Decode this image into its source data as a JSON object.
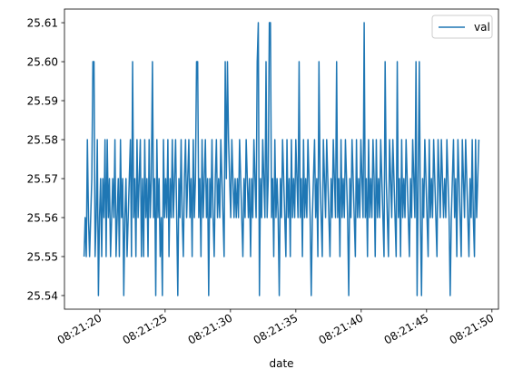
{
  "chart_data": {
    "type": "line",
    "xlabel": "date",
    "ylabel": "",
    "title": "",
    "x_start": "08:21:18.8",
    "x_end": "08:21:49.0",
    "xlim": [
      "08:21:17.3",
      "08:21:50.5"
    ],
    "ylim": [
      25.5365,
      25.6135
    ],
    "x_ticks": [
      "08:21:20",
      "08:21:25",
      "08:21:30",
      "08:21:35",
      "08:21:40",
      "08:21:45",
      "08:21:50"
    ],
    "y_ticks": [
      "25.54",
      "25.55",
      "25.56",
      "25.57",
      "25.58",
      "25.59",
      "25.60",
      "25.61"
    ],
    "grid": false,
    "legend": {
      "position": "top-right",
      "entries": [
        "val"
      ]
    },
    "line_color": "#1f77b4",
    "series": [
      {
        "name": "val",
        "values": [
          25.55,
          25.56,
          25.55,
          25.58,
          25.56,
          25.55,
          25.56,
          25.57,
          25.6,
          25.6,
          25.55,
          25.56,
          25.58,
          25.54,
          25.56,
          25.57,
          25.55,
          25.57,
          25.56,
          25.58,
          25.55,
          25.58,
          25.56,
          25.57,
          25.55,
          25.56,
          25.57,
          25.56,
          25.58,
          25.55,
          25.56,
          25.57,
          25.55,
          25.58,
          25.56,
          25.57,
          25.54,
          25.56,
          25.57,
          25.55,
          25.56,
          25.57,
          25.58,
          25.55,
          25.6,
          25.56,
          25.57,
          25.55,
          25.58,
          25.56,
          25.57,
          25.58,
          25.55,
          25.57,
          25.55,
          25.58,
          25.56,
          25.57,
          25.55,
          25.58,
          25.56,
          25.57,
          25.6,
          25.56,
          25.57,
          25.54,
          25.58,
          25.56,
          25.57,
          25.55,
          25.56,
          25.54,
          25.58,
          25.56,
          25.57,
          25.56,
          25.58,
          25.55,
          25.57,
          25.56,
          25.58,
          25.56,
          25.57,
          25.58,
          25.56,
          25.54,
          25.57,
          25.56,
          25.58,
          25.56,
          25.55,
          25.57,
          25.58,
          25.56,
          25.57,
          25.58,
          25.56,
          25.57,
          25.55,
          25.58,
          25.56,
          25.57,
          25.6,
          25.6,
          25.56,
          25.57,
          25.55,
          25.58,
          25.56,
          25.57,
          25.58,
          25.56,
          25.57,
          25.54,
          25.57,
          25.56,
          25.58,
          25.56,
          25.55,
          25.57,
          25.58,
          25.56,
          25.57,
          25.56,
          25.58,
          25.57,
          25.56,
          25.55,
          25.6,
          25.57,
          25.6,
          25.58,
          25.57,
          25.56,
          25.58,
          25.57,
          25.56,
          25.57,
          25.56,
          25.57,
          25.56,
          25.58,
          25.57,
          25.56,
          25.55,
          25.57,
          25.56,
          25.58,
          25.57,
          25.56,
          25.57,
          25.55,
          25.57,
          25.56,
          25.58,
          25.57,
          25.56,
          25.6,
          25.61,
          25.54,
          25.57,
          25.56,
          25.58,
          25.57,
          25.56,
          25.6,
          25.56,
          25.57,
          25.61,
          25.61,
          25.56,
          25.57,
          25.55,
          25.58,
          25.56,
          25.57,
          25.56,
          25.54,
          25.57,
          25.56,
          25.58,
          25.57,
          25.56,
          25.55,
          25.58,
          25.56,
          25.57,
          25.55,
          25.58,
          25.56,
          25.57,
          25.56,
          25.58,
          25.57,
          25.56,
          25.6,
          25.56,
          25.57,
          25.55,
          25.58,
          25.56,
          25.57,
          25.56,
          25.58,
          25.57,
          25.56,
          25.54,
          25.56,
          25.57,
          25.58,
          25.56,
          25.57,
          25.55,
          25.6,
          25.57,
          25.56,
          25.55,
          25.58,
          25.57,
          25.56,
          25.58,
          25.57,
          25.56,
          25.55,
          25.57,
          25.56,
          25.58,
          25.57,
          25.56,
          25.6,
          25.56,
          25.57,
          25.55,
          25.58,
          25.56,
          25.57,
          25.56,
          25.58,
          25.57,
          25.56,
          25.54,
          25.57,
          25.56,
          25.58,
          25.57,
          25.56,
          25.55,
          25.58,
          25.56,
          25.57,
          25.56,
          25.58,
          25.57,
          25.56,
          25.61,
          25.56,
          25.57,
          25.55,
          25.58,
          25.56,
          25.57,
          25.56,
          25.58,
          25.57,
          25.55,
          25.58,
          25.56,
          25.57,
          25.56,
          25.58,
          25.57,
          25.56,
          25.55,
          25.6,
          25.57,
          25.56,
          25.55,
          25.58,
          25.57,
          25.56,
          25.58,
          25.57,
          25.56,
          25.55,
          25.6,
          25.56,
          25.57,
          25.55,
          25.58,
          25.56,
          25.57,
          25.56,
          25.58,
          25.57,
          25.56,
          25.55,
          25.57,
          25.56,
          25.58,
          25.57,
          25.56,
          25.6,
          25.54,
          25.57,
          25.6,
          25.56,
          25.54,
          25.57,
          25.56,
          25.58,
          25.57,
          25.56,
          25.55,
          25.58,
          25.56,
          25.57,
          25.56,
          25.58,
          25.57,
          25.56,
          25.55,
          25.58,
          25.57,
          25.56,
          25.58,
          25.57,
          25.56,
          25.57,
          25.56,
          25.58,
          25.57,
          25.56,
          25.54,
          25.56,
          25.57,
          25.58,
          25.56,
          25.57,
          25.55,
          25.58,
          25.57,
          25.56,
          25.55,
          25.58,
          25.57,
          25.56,
          25.58,
          25.57,
          25.56,
          25.55,
          25.57,
          25.56,
          25.58,
          25.56,
          25.55,
          25.58,
          25.56,
          25.57,
          25.58
        ]
      }
    ]
  }
}
